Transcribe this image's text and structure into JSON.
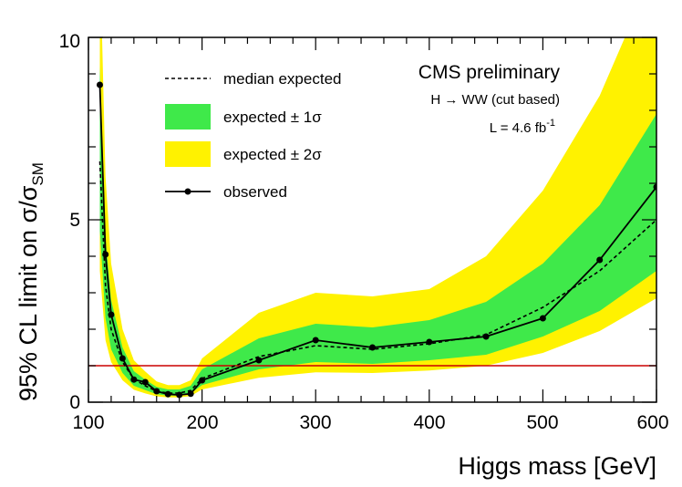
{
  "chart_data": {
    "type": "line",
    "xlabel": "Higgs mass [GeV]",
    "ylabel_main": "95% CL limit on σ/σ",
    "ylabel_sub": "SM",
    "xlim": [
      100,
      600
    ],
    "ylim": [
      0,
      10
    ],
    "x_ticks": [
      "100",
      "200",
      "300",
      "400",
      "500",
      "600"
    ],
    "y_ticks": [
      "0",
      "5",
      "10"
    ],
    "annotation_title": "CMS preliminary",
    "annotation_channel": "H → WW (cut based)",
    "annotation_lumi": "L = 4.6 fb",
    "annotation_lumi_sup": "-1",
    "reference_line": {
      "y": 1.0,
      "color": "#cc0000"
    },
    "legend_position": "top-left",
    "legend": {
      "median": "median expected",
      "one_sigma": "expected ± 1σ",
      "two_sigma": "expected ± 2σ",
      "observed": "observed"
    },
    "colors": {
      "one_sigma": "#3fe94a",
      "two_sigma": "#fff200",
      "observed": "#000000",
      "median": "#000000"
    },
    "mass": [
      110,
      115,
      120,
      130,
      140,
      150,
      160,
      170,
      180,
      190,
      200,
      250,
      300,
      350,
      400,
      450,
      500,
      550,
      600
    ],
    "observed": [
      8.7,
      4.05,
      2.4,
      1.2,
      0.62,
      0.55,
      0.3,
      0.22,
      0.2,
      0.23,
      0.6,
      1.15,
      1.7,
      1.5,
      1.65,
      1.8,
      2.3,
      3.9,
      5.9
    ],
    "median": [
      6.6,
      3.2,
      2.0,
      1.1,
      0.63,
      0.45,
      0.3,
      0.25,
      0.25,
      0.32,
      0.65,
      1.25,
      1.55,
      1.45,
      1.6,
      1.85,
      2.6,
      3.6,
      5.0
    ],
    "one_sigma_low": [
      4.7,
      2.3,
      1.45,
      0.8,
      0.45,
      0.33,
      0.22,
      0.18,
      0.18,
      0.24,
      0.47,
      0.9,
      1.1,
      1.05,
      1.15,
      1.3,
      1.8,
      2.5,
      3.6
    ],
    "one_sigma_high": [
      9.2,
      4.5,
      2.8,
      1.5,
      0.85,
      0.62,
      0.42,
      0.35,
      0.35,
      0.45,
      0.9,
      1.75,
      2.15,
      2.05,
      2.25,
      2.75,
      3.8,
      5.4,
      7.9
    ],
    "two_sigma_low": [
      3.6,
      1.7,
      1.1,
      0.6,
      0.34,
      0.24,
      0.16,
      0.13,
      0.13,
      0.17,
      0.35,
      0.67,
      0.82,
      0.8,
      0.87,
      1.0,
      1.35,
      1.95,
      2.85
    ],
    "two_sigma_high": [
      12.5,
      6.2,
      3.8,
      2.0,
      1.15,
      0.84,
      0.57,
      0.47,
      0.47,
      0.6,
      1.2,
      2.45,
      3.0,
      2.9,
      3.1,
      4.0,
      5.8,
      8.4,
      12.0
    ]
  }
}
